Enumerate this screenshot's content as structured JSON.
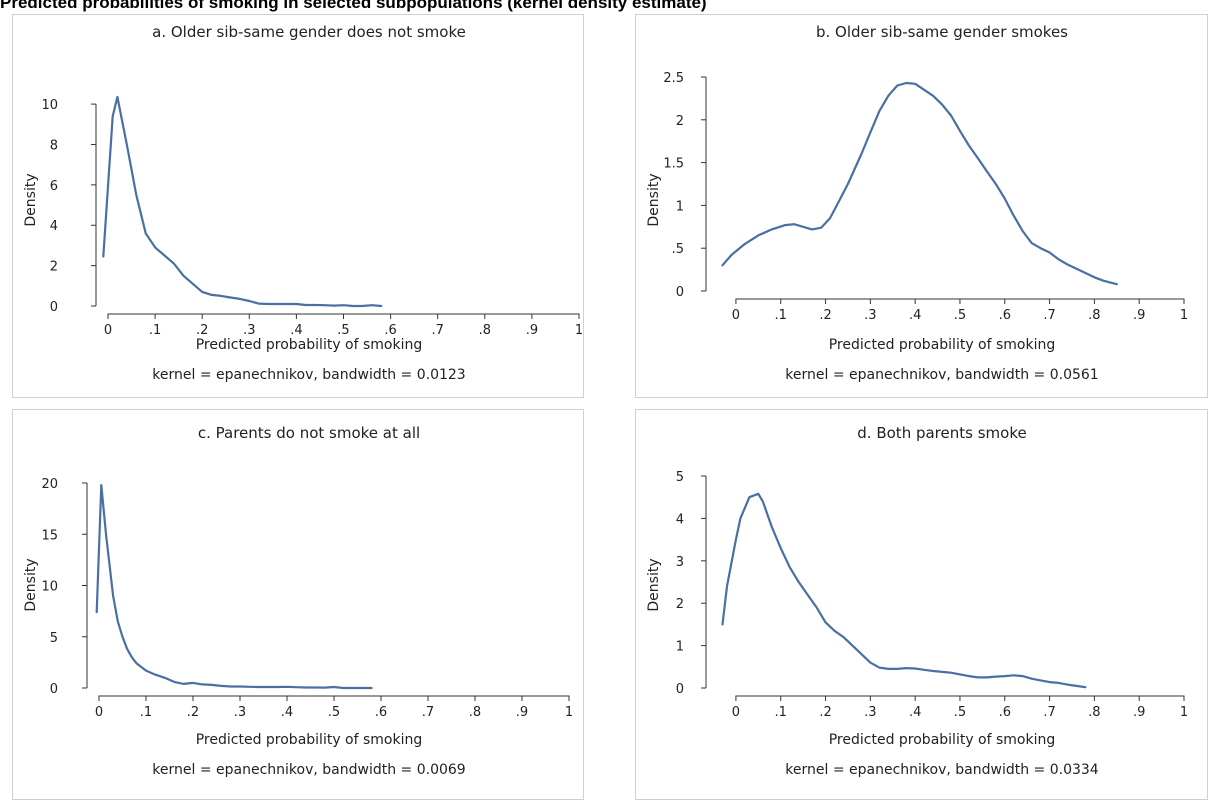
{
  "page": {
    "title": "Predicted probabilities of smoking in selected subpopulations (kernel density estimate)"
  },
  "chart_data": [
    {
      "type": "line",
      "title": "a. Older sib-same gender does not smoke",
      "xlabel": "Predicted probability of smoking",
      "ylabel": "Density",
      "note": "kernel = epanechnikov, bandwidth = 0.0123",
      "xlim": [
        0,
        1
      ],
      "ylim": [
        0,
        10.5
      ],
      "xticks": [
        0,
        0.1,
        0.2,
        0.3,
        0.4,
        0.5,
        0.6,
        0.7,
        0.8,
        0.9,
        1
      ],
      "xtick_labels": [
        "0",
        ".1",
        ".2",
        ".3",
        ".4",
        ".5",
        ".6",
        ".7",
        ".8",
        ".9",
        "1"
      ],
      "yticks": [
        0,
        2,
        4,
        6,
        8,
        10
      ],
      "ytick_labels": [
        "0",
        "2",
        "4",
        "6",
        "8",
        "10"
      ],
      "grid": false,
      "color": "#4a6fa5",
      "series": [
        {
          "x": [
            -0.01,
            0.01,
            0.02,
            0.04,
            0.06,
            0.08,
            0.1,
            0.12,
            0.14,
            0.16,
            0.18,
            0.2,
            0.22,
            0.24,
            0.26,
            0.28,
            0.3,
            0.32,
            0.34,
            0.36,
            0.38,
            0.4,
            0.42,
            0.44,
            0.46,
            0.48,
            0.5,
            0.52,
            0.54,
            0.56,
            0.58
          ],
          "y": [
            2.45,
            9.4,
            10.35,
            8.0,
            5.5,
            3.6,
            2.9,
            2.5,
            2.1,
            1.5,
            1.1,
            0.7,
            0.55,
            0.5,
            0.42,
            0.35,
            0.25,
            0.12,
            0.1,
            0.1,
            0.1,
            0.1,
            0.05,
            0.05,
            0.04,
            0.02,
            0.04,
            0.0,
            0.0,
            0.04,
            0.0
          ]
        }
      ]
    },
    {
      "type": "line",
      "title": "b. Older sib-same gender smokes",
      "xlabel": "Predicted probability of smoking",
      "ylabel": "Density",
      "note": "kernel = epanechnikov, bandwidth = 0.0561",
      "xlim": [
        -0.04,
        1
      ],
      "ylim": [
        0,
        2.5
      ],
      "xticks": [
        0,
        0.1,
        0.2,
        0.3,
        0.4,
        0.5,
        0.6,
        0.7,
        0.8,
        0.9,
        1
      ],
      "xtick_labels": [
        "0",
        ".1",
        ".2",
        ".3",
        ".4",
        ".5",
        ".6",
        ".7",
        ".8",
        ".9",
        "1"
      ],
      "yticks": [
        0,
        0.5,
        1,
        1.5,
        2,
        2.5
      ],
      "ytick_labels": [
        "0",
        ".5",
        "1",
        "1.5",
        "2",
        "2.5"
      ],
      "grid": false,
      "color": "#4a6fa5",
      "series": [
        {
          "x": [
            -0.03,
            -0.01,
            0.02,
            0.05,
            0.08,
            0.11,
            0.13,
            0.15,
            0.17,
            0.19,
            0.21,
            0.23,
            0.25,
            0.28,
            0.3,
            0.32,
            0.34,
            0.36,
            0.38,
            0.4,
            0.42,
            0.44,
            0.46,
            0.48,
            0.5,
            0.52,
            0.54,
            0.56,
            0.58,
            0.6,
            0.62,
            0.64,
            0.66,
            0.68,
            0.7,
            0.72,
            0.74,
            0.76,
            0.78,
            0.8,
            0.82,
            0.85
          ],
          "y": [
            0.3,
            0.42,
            0.55,
            0.65,
            0.72,
            0.77,
            0.78,
            0.75,
            0.72,
            0.74,
            0.85,
            1.05,
            1.25,
            1.6,
            1.85,
            2.1,
            2.28,
            2.4,
            2.43,
            2.42,
            2.35,
            2.28,
            2.18,
            2.05,
            1.87,
            1.7,
            1.55,
            1.4,
            1.25,
            1.08,
            0.88,
            0.7,
            0.56,
            0.5,
            0.45,
            0.37,
            0.31,
            0.26,
            0.21,
            0.16,
            0.12,
            0.08
          ]
        }
      ]
    },
    {
      "type": "line",
      "title": "c. Parents do not smoke at all",
      "xlabel": "Predicted probability of smoking",
      "ylabel": "Density",
      "note": "kernel = epanechnikov, bandwidth = 0.0069",
      "xlim": [
        0,
        1
      ],
      "ylim": [
        0,
        20
      ],
      "xticks": [
        0,
        0.1,
        0.2,
        0.3,
        0.4,
        0.5,
        0.6,
        0.7,
        0.8,
        0.9,
        1
      ],
      "xtick_labels": [
        "0",
        ".1",
        ".2",
        ".3",
        ".4",
        ".5",
        ".6",
        ".7",
        ".8",
        ".9",
        "1"
      ],
      "yticks": [
        0,
        5,
        10,
        15,
        20
      ],
      "ytick_labels": [
        "0",
        "5",
        "10",
        "15",
        "20"
      ],
      "grid": false,
      "color": "#4a6fa5",
      "series": [
        {
          "x": [
            -0.005,
            0.005,
            0.015,
            0.03,
            0.04,
            0.05,
            0.06,
            0.07,
            0.08,
            0.1,
            0.12,
            0.14,
            0.16,
            0.18,
            0.2,
            0.22,
            0.24,
            0.26,
            0.28,
            0.3,
            0.32,
            0.34,
            0.36,
            0.38,
            0.4,
            0.42,
            0.44,
            0.46,
            0.48,
            0.5,
            0.52,
            0.54,
            0.56,
            0.58
          ],
          "y": [
            7.4,
            19.8,
            15.0,
            9.0,
            6.5,
            5.0,
            3.8,
            3.0,
            2.4,
            1.7,
            1.3,
            1.0,
            0.6,
            0.4,
            0.5,
            0.35,
            0.3,
            0.2,
            0.15,
            0.15,
            0.12,
            0.1,
            0.1,
            0.1,
            0.12,
            0.08,
            0.05,
            0.05,
            0.04,
            0.1,
            0.0,
            0.0,
            0.0,
            0.0
          ]
        }
      ]
    },
    {
      "type": "line",
      "title": "d. Both parents smoke",
      "xlabel": "Predicted probability of smoking",
      "ylabel": "Density",
      "note": "kernel = epanechnikov, bandwidth = 0.0334",
      "xlim": [
        -0.04,
        1
      ],
      "ylim": [
        0,
        5
      ],
      "xticks": [
        0,
        0.1,
        0.2,
        0.3,
        0.4,
        0.5,
        0.6,
        0.7,
        0.8,
        0.9,
        1
      ],
      "xtick_labels": [
        "0",
        ".1",
        ".2",
        ".3",
        ".4",
        ".5",
        ".6",
        ".7",
        ".8",
        ".9",
        "1"
      ],
      "yticks": [
        0,
        1,
        2,
        3,
        4,
        5
      ],
      "ytick_labels": [
        "0",
        "1",
        "2",
        "3",
        "4",
        "5"
      ],
      "grid": false,
      "color": "#4a6fa5",
      "series": [
        {
          "x": [
            -0.03,
            -0.02,
            0.0,
            0.01,
            0.03,
            0.05,
            0.06,
            0.08,
            0.1,
            0.12,
            0.14,
            0.16,
            0.18,
            0.2,
            0.22,
            0.24,
            0.26,
            0.28,
            0.3,
            0.32,
            0.34,
            0.36,
            0.38,
            0.4,
            0.42,
            0.44,
            0.46,
            0.48,
            0.5,
            0.52,
            0.54,
            0.56,
            0.58,
            0.6,
            0.62,
            0.64,
            0.66,
            0.68,
            0.7,
            0.72,
            0.74,
            0.76,
            0.78
          ],
          "y": [
            1.5,
            2.4,
            3.5,
            4.0,
            4.5,
            4.58,
            4.4,
            3.8,
            3.3,
            2.85,
            2.5,
            2.2,
            1.9,
            1.55,
            1.35,
            1.2,
            1.0,
            0.8,
            0.6,
            0.48,
            0.45,
            0.45,
            0.47,
            0.46,
            0.43,
            0.4,
            0.38,
            0.36,
            0.32,
            0.28,
            0.25,
            0.25,
            0.27,
            0.28,
            0.3,
            0.28,
            0.22,
            0.18,
            0.14,
            0.12,
            0.08,
            0.05,
            0.02
          ]
        }
      ]
    }
  ]
}
